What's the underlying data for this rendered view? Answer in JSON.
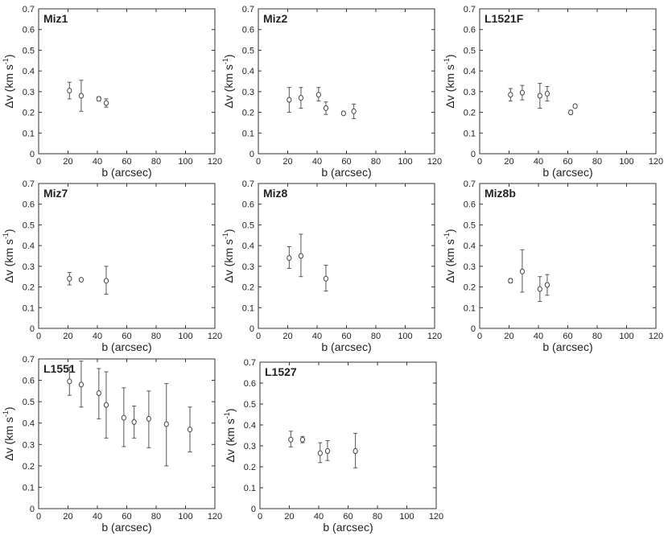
{
  "colors": {
    "axis": "#333333",
    "marker": "#444444",
    "errorbar": "#555555",
    "text": "#222222"
  },
  "chart_data": [
    {
      "type": "scatter",
      "title": "Miz1",
      "xlabel": "b (arcsec)",
      "ylabel_main": "Δv (km s",
      "ylabel_sup": "-1",
      "ylabel_close": ")",
      "xlim": [
        0,
        120
      ],
      "ylim": [
        0,
        0.7
      ],
      "xticks": [
        "0",
        "20",
        "40",
        "60",
        "80",
        "100",
        "120"
      ],
      "yticks": [
        "0",
        "0.1",
        "0.2",
        "0.3",
        "0.4",
        "0.5",
        "0.6",
        "0.7"
      ],
      "points": [
        {
          "x": 21,
          "y": 0.305,
          "lo": 0.265,
          "hi": 0.345
        },
        {
          "x": 29,
          "y": 0.28,
          "lo": 0.205,
          "hi": 0.355
        },
        {
          "x": 41,
          "y": 0.265,
          "lo": 0.255,
          "hi": 0.275
        },
        {
          "x": 46,
          "y": 0.245,
          "lo": 0.225,
          "hi": 0.265
        }
      ]
    },
    {
      "type": "scatter",
      "title": "Miz2",
      "xlabel": "b (arcsec)",
      "ylabel_main": "Δv (km s",
      "ylabel_sup": "-1",
      "ylabel_close": ")",
      "xlim": [
        0,
        120
      ],
      "ylim": [
        0,
        0.7
      ],
      "xticks": [
        "0",
        "20",
        "40",
        "60",
        "80",
        "100",
        "120"
      ],
      "yticks": [
        "0",
        "0.1",
        "0.2",
        "0.3",
        "0.4",
        "0.5",
        "0.6",
        "0.7"
      ],
      "points": [
        {
          "x": 21,
          "y": 0.26,
          "lo": 0.2,
          "hi": 0.32
        },
        {
          "x": 29,
          "y": 0.27,
          "lo": 0.22,
          "hi": 0.32
        },
        {
          "x": 41,
          "y": 0.285,
          "lo": 0.255,
          "hi": 0.32
        },
        {
          "x": 46,
          "y": 0.22,
          "lo": 0.19,
          "hi": 0.25
        },
        {
          "x": 58,
          "y": 0.195,
          "lo": 0.19,
          "hi": 0.2
        },
        {
          "x": 65,
          "y": 0.205,
          "lo": 0.17,
          "hi": 0.24
        }
      ]
    },
    {
      "type": "scatter",
      "title": "L1521F",
      "xlabel": "b (arcsec)",
      "ylabel_main": "Δv (km s",
      "ylabel_sup": "-1",
      "ylabel_close": ")",
      "xlim": [
        0,
        120
      ],
      "ylim": [
        0,
        0.7
      ],
      "xticks": [
        "0",
        "20",
        "40",
        "60",
        "80",
        "100",
        "120"
      ],
      "yticks": [
        "0",
        "0.1",
        "0.2",
        "0.3",
        "0.4",
        "0.5",
        "0.6",
        "0.7"
      ],
      "points": [
        {
          "x": 21,
          "y": 0.285,
          "lo": 0.255,
          "hi": 0.315
        },
        {
          "x": 29,
          "y": 0.295,
          "lo": 0.26,
          "hi": 0.33
        },
        {
          "x": 41,
          "y": 0.28,
          "lo": 0.22,
          "hi": 0.34
        },
        {
          "x": 46,
          "y": 0.29,
          "lo": 0.255,
          "hi": 0.325
        },
        {
          "x": 62,
          "y": 0.2,
          "lo": 0.19,
          "hi": 0.21
        },
        {
          "x": 65,
          "y": 0.23,
          "lo": 0.225,
          "hi": 0.235
        }
      ]
    },
    {
      "type": "scatter",
      "title": "Miz7",
      "xlabel": "b (arcsec)",
      "ylabel_main": "Δv (km s",
      "ylabel_sup": "-1",
      "ylabel_close": ")",
      "xlim": [
        0,
        120
      ],
      "ylim": [
        0,
        0.7
      ],
      "xticks": [
        "0",
        "20",
        "40",
        "60",
        "80",
        "100",
        "120"
      ],
      "yticks": [
        "0",
        "0.1",
        "0.2",
        "0.3",
        "0.4",
        "0.5",
        "0.6",
        "0.7"
      ],
      "points": [
        {
          "x": 21,
          "y": 0.24,
          "lo": 0.21,
          "hi": 0.27
        },
        {
          "x": 29,
          "y": 0.235,
          "lo": 0.23,
          "hi": 0.24
        },
        {
          "x": 46,
          "y": 0.23,
          "lo": 0.165,
          "hi": 0.3
        }
      ]
    },
    {
      "type": "scatter",
      "title": "Miz8",
      "xlabel": "b (arcsec)",
      "ylabel_main": "Δv (km s",
      "ylabel_sup": "-1",
      "ylabel_close": ")",
      "xlim": [
        0,
        120
      ],
      "ylim": [
        0,
        0.7
      ],
      "xticks": [
        "0",
        "20",
        "40",
        "60",
        "80",
        "100",
        "120"
      ],
      "yticks": [
        "0",
        "0.1",
        "0.2",
        "0.3",
        "0.4",
        "0.5",
        "0.6",
        "0.7"
      ],
      "points": [
        {
          "x": 21,
          "y": 0.34,
          "lo": 0.29,
          "hi": 0.395
        },
        {
          "x": 29,
          "y": 0.35,
          "lo": 0.25,
          "hi": 0.455
        },
        {
          "x": 46,
          "y": 0.24,
          "lo": 0.18,
          "hi": 0.305
        }
      ]
    },
    {
      "type": "scatter",
      "title": "Miz8b",
      "xlabel": "b (arcsec)",
      "ylabel_main": "Δv (km s",
      "ylabel_sup": "-1",
      "ylabel_close": ")",
      "xlim": [
        0,
        120
      ],
      "ylim": [
        0,
        0.7
      ],
      "xticks": [
        "0",
        "20",
        "40",
        "60",
        "80",
        "100",
        "120"
      ],
      "yticks": [
        "0",
        "0.1",
        "0.2",
        "0.3",
        "0.4",
        "0.5",
        "0.6",
        "0.7"
      ],
      "points": [
        {
          "x": 21,
          "y": 0.23,
          "lo": 0.22,
          "hi": 0.24
        },
        {
          "x": 29,
          "y": 0.275,
          "lo": 0.175,
          "hi": 0.38
        },
        {
          "x": 41,
          "y": 0.19,
          "lo": 0.13,
          "hi": 0.25
        },
        {
          "x": 46,
          "y": 0.21,
          "lo": 0.16,
          "hi": 0.26
        }
      ]
    },
    {
      "type": "scatter",
      "title": "L1551",
      "xlabel": "b (arcsec)",
      "ylabel_main": "Δv (km s",
      "ylabel_sup": "-1",
      "ylabel_close": ")",
      "xlim": [
        0,
        120
      ],
      "ylim": [
        0,
        0.7
      ],
      "xticks": [
        "0",
        "20",
        "40",
        "60",
        "80",
        "100",
        "120"
      ],
      "yticks": [
        "0",
        "0.1",
        "0.2",
        "0.3",
        "0.4",
        "0.5",
        "0.6",
        "0.7"
      ],
      "points": [
        {
          "x": 21,
          "y": 0.595,
          "lo": 0.53,
          "hi": 0.66
        },
        {
          "x": 29,
          "y": 0.58,
          "lo": 0.475,
          "hi": 0.69
        },
        {
          "x": 41,
          "y": 0.54,
          "lo": 0.42,
          "hi": 0.655
        },
        {
          "x": 46,
          "y": 0.485,
          "lo": 0.33,
          "hi": 0.64
        },
        {
          "x": 58,
          "y": 0.425,
          "lo": 0.29,
          "hi": 0.565
        },
        {
          "x": 65,
          "y": 0.405,
          "lo": 0.33,
          "hi": 0.48
        },
        {
          "x": 75,
          "y": 0.42,
          "lo": 0.285,
          "hi": 0.55
        },
        {
          "x": 87,
          "y": 0.395,
          "lo": 0.2,
          "hi": 0.585
        },
        {
          "x": 103,
          "y": 0.37,
          "lo": 0.265,
          "hi": 0.475
        }
      ]
    },
    {
      "type": "scatter",
      "title": "L1527",
      "xlabel": "b (arcsec)",
      "ylabel_main": "Δv (km s",
      "ylabel_sup": "-1",
      "ylabel_close": ")",
      "xlim": [
        0,
        120
      ],
      "ylim": [
        0,
        0.7
      ],
      "xticks": [
        "0",
        "20",
        "40",
        "60",
        "80",
        "100",
        "120"
      ],
      "yticks": [
        "0",
        "0.1",
        "0.2",
        "0.3",
        "0.4",
        "0.5",
        "0.6",
        "0.7"
      ],
      "points": [
        {
          "x": 21,
          "y": 0.33,
          "lo": 0.295,
          "hi": 0.37
        },
        {
          "x": 29,
          "y": 0.33,
          "lo": 0.315,
          "hi": 0.345
        },
        {
          "x": 41,
          "y": 0.265,
          "lo": 0.22,
          "hi": 0.315
        },
        {
          "x": 46,
          "y": 0.275,
          "lo": 0.23,
          "hi": 0.325
        },
        {
          "x": 65,
          "y": 0.275,
          "lo": 0.195,
          "hi": 0.36
        }
      ]
    }
  ]
}
